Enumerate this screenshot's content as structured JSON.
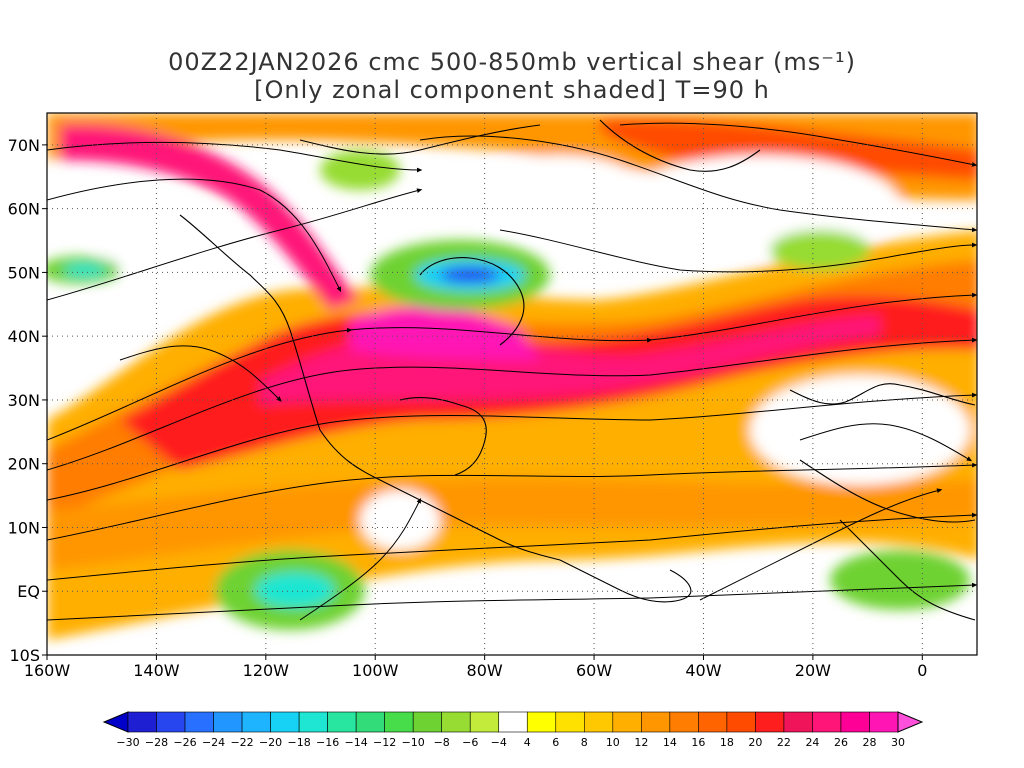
{
  "title_line1": "00Z22JAN2026 cmc 500-850mb vertical shear (ms⁻¹)",
  "title_line2": "[Only zonal component shaded] T=90 h",
  "map": {
    "lat_labels": [
      "70N",
      "60N",
      "50N",
      "40N",
      "30N",
      "20N",
      "10N",
      "EQ",
      "10S"
    ],
    "lon_labels": [
      "160W",
      "140W",
      "120W",
      "100W",
      "80W",
      "60W",
      "40W",
      "20W",
      "0"
    ],
    "lat_values": [
      70,
      60,
      50,
      40,
      30,
      20,
      10,
      0,
      -10
    ],
    "lon_values": [
      -160,
      -140,
      -120,
      -100,
      -80,
      -60,
      -40,
      -20,
      0
    ],
    "extent": {
      "lon": [
        -160,
        10
      ],
      "lat": [
        -10,
        75
      ]
    }
  },
  "colorbar": {
    "labels": [
      "-30",
      "-28",
      "-26",
      "-24",
      "-22",
      "-20",
      "-18",
      "-16",
      "-14",
      "-12",
      "-10",
      "-8",
      "-6",
      "-4",
      "4",
      "6",
      "8",
      "10",
      "12",
      "14",
      "16",
      "18",
      "20",
      "22",
      "24",
      "26",
      "28",
      "30"
    ],
    "colors": [
      "#1e1ed2",
      "#2846f0",
      "#2870ff",
      "#2296ff",
      "#1eb4ff",
      "#18d2f5",
      "#1ee6d2",
      "#28e6a0",
      "#32dc78",
      "#46dc4a",
      "#6ed232",
      "#96dc32",
      "#c3eb3c",
      "#ffffff",
      "#ffff00",
      "#ffe100",
      "#ffc800",
      "#ffaf00",
      "#ff9600",
      "#ff7d00",
      "#ff6400",
      "#ff4b00",
      "#ff1e1e",
      "#f0145a",
      "#ff1478",
      "#ff0096",
      "#ff14b4"
    ],
    "low_color": "#0000c8",
    "high_color": "#ff50dc"
  }
}
